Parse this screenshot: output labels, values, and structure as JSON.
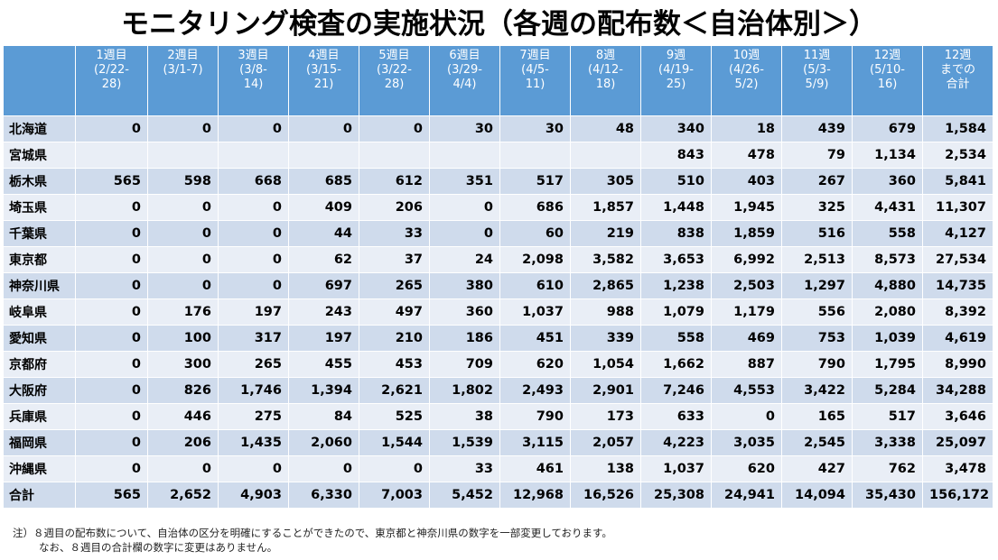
{
  "title": "モニタリング検査の実施状況（各週の配布数＜自治体別＞）",
  "headers": [
    {
      "lines": [
        ""
      ]
    },
    {
      "lines": [
        "1週目",
        "(2/22-",
        "28)"
      ]
    },
    {
      "lines": [
        "2週目",
        "(3/1-7)"
      ]
    },
    {
      "lines": [
        "3週目",
        "(3/8-",
        "14)"
      ]
    },
    {
      "lines": [
        "4週目",
        "(3/15-",
        "21)"
      ]
    },
    {
      "lines": [
        "5週目",
        "(3/22-",
        "28)"
      ]
    },
    {
      "lines": [
        "6週目",
        "(3/29-",
        "4/4)"
      ]
    },
    {
      "lines": [
        "7週目",
        "(4/5-",
        "11)"
      ]
    },
    {
      "lines": [
        "8週",
        "(4/12-",
        "18)"
      ]
    },
    {
      "lines": [
        "9週",
        "(4/19-",
        "25)"
      ]
    },
    {
      "lines": [
        "10週",
        "(4/26-",
        "5/2)"
      ]
    },
    {
      "lines": [
        "11週",
        "(5/3-",
        "5/9)"
      ]
    },
    {
      "lines": [
        "12週",
        "(5/10-",
        "16)"
      ]
    },
    {
      "lines": [
        "12週",
        "までの",
        "合計"
      ]
    }
  ],
  "rows": [
    {
      "pref": "北海道",
      "vals": [
        "0",
        "0",
        "0",
        "0",
        "0",
        "30",
        "30",
        "48",
        "340",
        "18",
        "439",
        "679",
        "1,584"
      ]
    },
    {
      "pref": "宮城県",
      "vals": [
        "",
        "",
        "",
        "",
        "",
        "",
        "",
        "",
        "843",
        "478",
        "79",
        "1,134",
        "2,534"
      ]
    },
    {
      "pref": "栃木県",
      "vals": [
        "565",
        "598",
        "668",
        "685",
        "612",
        "351",
        "517",
        "305",
        "510",
        "403",
        "267",
        "360",
        "5,841"
      ]
    },
    {
      "pref": "埼玉県",
      "vals": [
        "0",
        "0",
        "0",
        "409",
        "206",
        "0",
        "686",
        "1,857",
        "1,448",
        "1,945",
        "325",
        "4,431",
        "11,307"
      ]
    },
    {
      "pref": "千葉県",
      "vals": [
        "0",
        "0",
        "0",
        "44",
        "33",
        "0",
        "60",
        "219",
        "838",
        "1,859",
        "516",
        "558",
        "4,127"
      ]
    },
    {
      "pref": "東京都",
      "vals": [
        "0",
        "0",
        "0",
        "62",
        "37",
        "24",
        "2,098",
        "3,582",
        "3,653",
        "6,992",
        "2,513",
        "8,573",
        "27,534"
      ]
    },
    {
      "pref": "神奈川県",
      "vals": [
        "0",
        "0",
        "0",
        "697",
        "265",
        "380",
        "610",
        "2,865",
        "1,238",
        "2,503",
        "1,297",
        "4,880",
        "14,735"
      ]
    },
    {
      "pref": "岐阜県",
      "vals": [
        "0",
        "176",
        "197",
        "243",
        "497",
        "360",
        "1,037",
        "988",
        "1,079",
        "1,179",
        "556",
        "2,080",
        "8,392"
      ]
    },
    {
      "pref": "愛知県",
      "vals": [
        "0",
        "100",
        "317",
        "197",
        "210",
        "186",
        "451",
        "339",
        "558",
        "469",
        "753",
        "1,039",
        "4,619"
      ]
    },
    {
      "pref": "京都府",
      "vals": [
        "0",
        "300",
        "265",
        "455",
        "453",
        "709",
        "620",
        "1,054",
        "1,662",
        "887",
        "790",
        "1,795",
        "8,990"
      ]
    },
    {
      "pref": "大阪府",
      "vals": [
        "0",
        "826",
        "1,746",
        "1,394",
        "2,621",
        "1,802",
        "2,493",
        "2,901",
        "7,246",
        "4,553",
        "3,422",
        "5,284",
        "34,288"
      ]
    },
    {
      "pref": "兵庫県",
      "vals": [
        "0",
        "446",
        "275",
        "84",
        "525",
        "38",
        "790",
        "173",
        "633",
        "0",
        "165",
        "517",
        "3,646"
      ]
    },
    {
      "pref": "福岡県",
      "vals": [
        "0",
        "206",
        "1,435",
        "2,060",
        "1,544",
        "1,539",
        "3,115",
        "2,057",
        "4,223",
        "3,035",
        "2,545",
        "3,338",
        "25,097"
      ]
    },
    {
      "pref": "沖縄県",
      "vals": [
        "0",
        "0",
        "0",
        "0",
        "0",
        "33",
        "461",
        "138",
        "1,037",
        "620",
        "427",
        "762",
        "3,478"
      ]
    }
  ],
  "total": {
    "pref": "合計",
    "vals": [
      "565",
      "2,652",
      "4,903",
      "6,330",
      "7,003",
      "5,452",
      "12,968",
      "16,526",
      "25,308",
      "24,941",
      "14,094",
      "35,430",
      "156,172"
    ]
  },
  "note": {
    "line1": "注）８週目の配布数について、自治体の区分を明確にすることができたので、東京都と神奈川県の数字を一部変更しております。",
    "line2": "なお、８週目の合計欄の数字に変更はありません。"
  }
}
